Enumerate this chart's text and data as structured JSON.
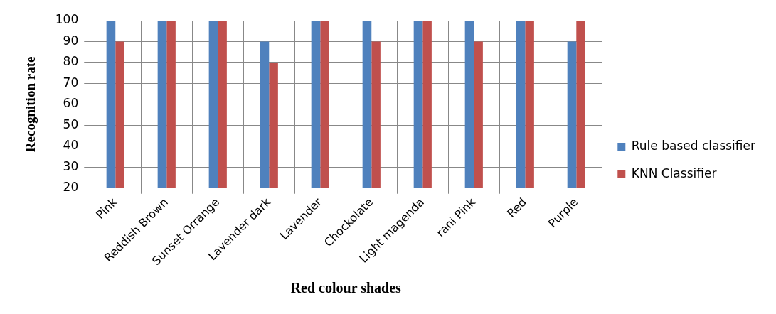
{
  "chart_data": {
    "type": "bar",
    "xlabel": "Red colour shades",
    "ylabel": "Recognition rate",
    "categories": [
      "Pink",
      "Reddish Brown",
      "Sunset Orrange",
      "Lavender dark",
      "Lavender",
      "Chockolate",
      "Light magenda",
      "rani Pink",
      "Red",
      "Purple"
    ],
    "series": [
      {
        "name": "Rule based classifier",
        "color": "#4f81bd",
        "values": [
          100,
          100,
          100,
          90,
          100,
          100,
          100,
          100,
          100,
          90
        ]
      },
      {
        "name": "KNN Classifier",
        "color": "#c0504d",
        "values": [
          90,
          100,
          100,
          80,
          100,
          90,
          100,
          90,
          100,
          100
        ]
      }
    ],
    "ylim": [
      20,
      100
    ],
    "yticks": [
      20,
      30,
      40,
      50,
      60,
      70,
      80,
      90,
      100
    ],
    "grid": true,
    "legend": "right"
  }
}
